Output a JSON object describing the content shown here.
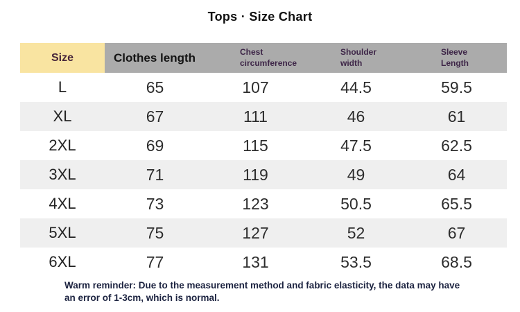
{
  "page": {
    "title": "Tops · Size Chart"
  },
  "chart_data": {
    "type": "table",
    "title": "Tops · Size Chart",
    "columns": [
      "Size",
      "Clothes length",
      "Chest\ncircumference",
      "Shoulder\nwidth",
      "Sleeve\nLength"
    ],
    "rows": [
      [
        "L",
        "65",
        "107",
        "44.5",
        "59.5"
      ],
      [
        "XL",
        "67",
        "111",
        "46",
        "61"
      ],
      [
        "2XL",
        "69",
        "115",
        "47.5",
        "62.5"
      ],
      [
        "3XL",
        "71",
        "119",
        "49",
        "64"
      ],
      [
        "4XL",
        "73",
        "123",
        "50.5",
        "65.5"
      ],
      [
        "5XL",
        "75",
        "127",
        "52",
        "67"
      ],
      [
        "6XL",
        "77",
        "131",
        "53.5",
        "68.5"
      ]
    ],
    "layout_hints": {
      "zebra_striped_rows": true,
      "header_background": "#ababab",
      "size_header_background": "#f9e4a1"
    }
  },
  "footer": {
    "note": "Warm reminder: Due to the measurement method and fabric elasticity, the data may have\nan error of 1-3cm, which is normal."
  },
  "colors": {
    "header_gray": "#ababab",
    "size_header_yellow": "#f9e4a1",
    "stripe_gray": "#efefef",
    "subheader_text_purple": "#3d2547",
    "note_text_navy": "#1c2340",
    "data_text": "#2d2d2d"
  }
}
